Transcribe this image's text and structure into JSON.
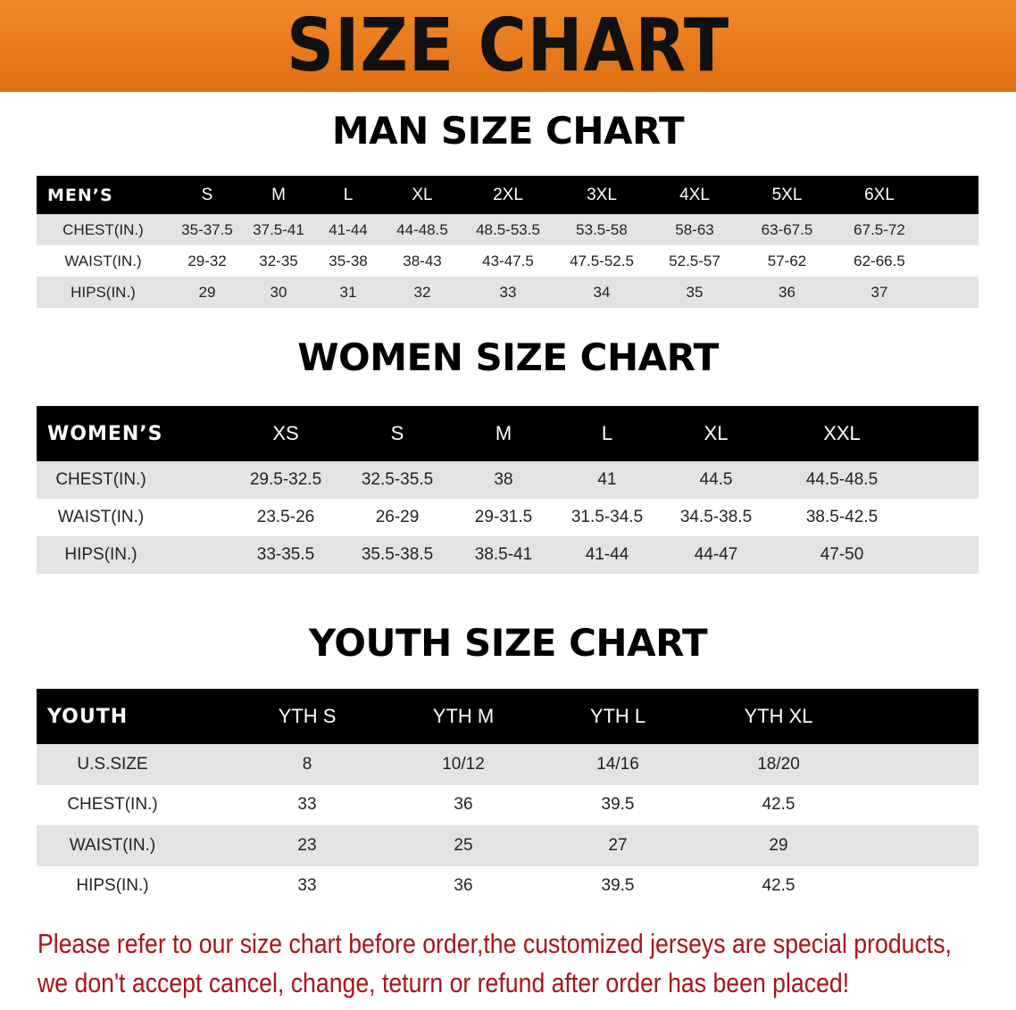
{
  "banner": {
    "title": "SIZE CHART",
    "color": "#e8781c"
  },
  "men": {
    "title": "MAN SIZE CHART",
    "header_label": "MEN’S",
    "sizes": [
      "S",
      "M",
      "L",
      "XL",
      "2XL",
      "3XL",
      "4XL",
      "5XL",
      "6XL"
    ],
    "rows": [
      {
        "label": "CHEST(IN.)",
        "values": [
          "35-37.5",
          "37.5-41",
          "41-44",
          "44-48.5",
          "48.5-53.5",
          "53.5-58",
          "58-63",
          "63-67.5",
          "67.5-72"
        ]
      },
      {
        "label": "WAIST(IN.)",
        "values": [
          "29-32",
          "32-35",
          "35-38",
          "38-43",
          "43-47.5",
          "47.5-52.5",
          "52.5-57",
          "57-62",
          "62-66.5"
        ]
      },
      {
        "label": "HIPS(IN.)",
        "values": [
          "29",
          "30",
          "31",
          "32",
          "33",
          "34",
          "35",
          "36",
          "37"
        ]
      }
    ]
  },
  "women": {
    "title": "WOMEN SIZE CHART",
    "header_label": "WOMEN’S",
    "sizes": [
      "XS",
      "S",
      "M",
      "L",
      "XL",
      "XXL"
    ],
    "rows": [
      {
        "label": "CHEST(IN.)",
        "values": [
          "29.5-32.5",
          "32.5-35.5",
          "38",
          "41",
          "44.5",
          "44.5-48.5"
        ]
      },
      {
        "label": "WAIST(IN.)",
        "values": [
          "23.5-26",
          "26-29",
          "29-31.5",
          "31.5-34.5",
          "34.5-38.5",
          "38.5-42.5"
        ]
      },
      {
        "label": "HIPS(IN.)",
        "values": [
          "33-35.5",
          "35.5-38.5",
          "38.5-41",
          "41-44",
          "44-47",
          "47-50"
        ]
      }
    ]
  },
  "youth": {
    "title": "YOUTH SIZE CHART",
    "header_label": "YOUTH",
    "sizes": [
      "YTH S",
      "YTH M",
      "YTH L",
      "YTH XL"
    ],
    "rows": [
      {
        "label": "U.S.SIZE",
        "values": [
          "8",
          "10/12",
          "14/16",
          "18/20"
        ]
      },
      {
        "label": "CHEST(IN.)",
        "values": [
          "33",
          "36",
          "39.5",
          "42.5"
        ]
      },
      {
        "label": "WAIST(IN.)",
        "values": [
          "23",
          "25",
          "27",
          "29"
        ]
      },
      {
        "label": "HIPS(IN.)",
        "values": [
          "33",
          "36",
          "39.5",
          "42.5"
        ]
      }
    ]
  },
  "notice": {
    "line1": "Please refer to our size chart before order,the customized jerseys are special products,",
    "line2": "we don't accept cancel, change, teturn or refund after order has been placed!",
    "color": "#a8141a"
  }
}
